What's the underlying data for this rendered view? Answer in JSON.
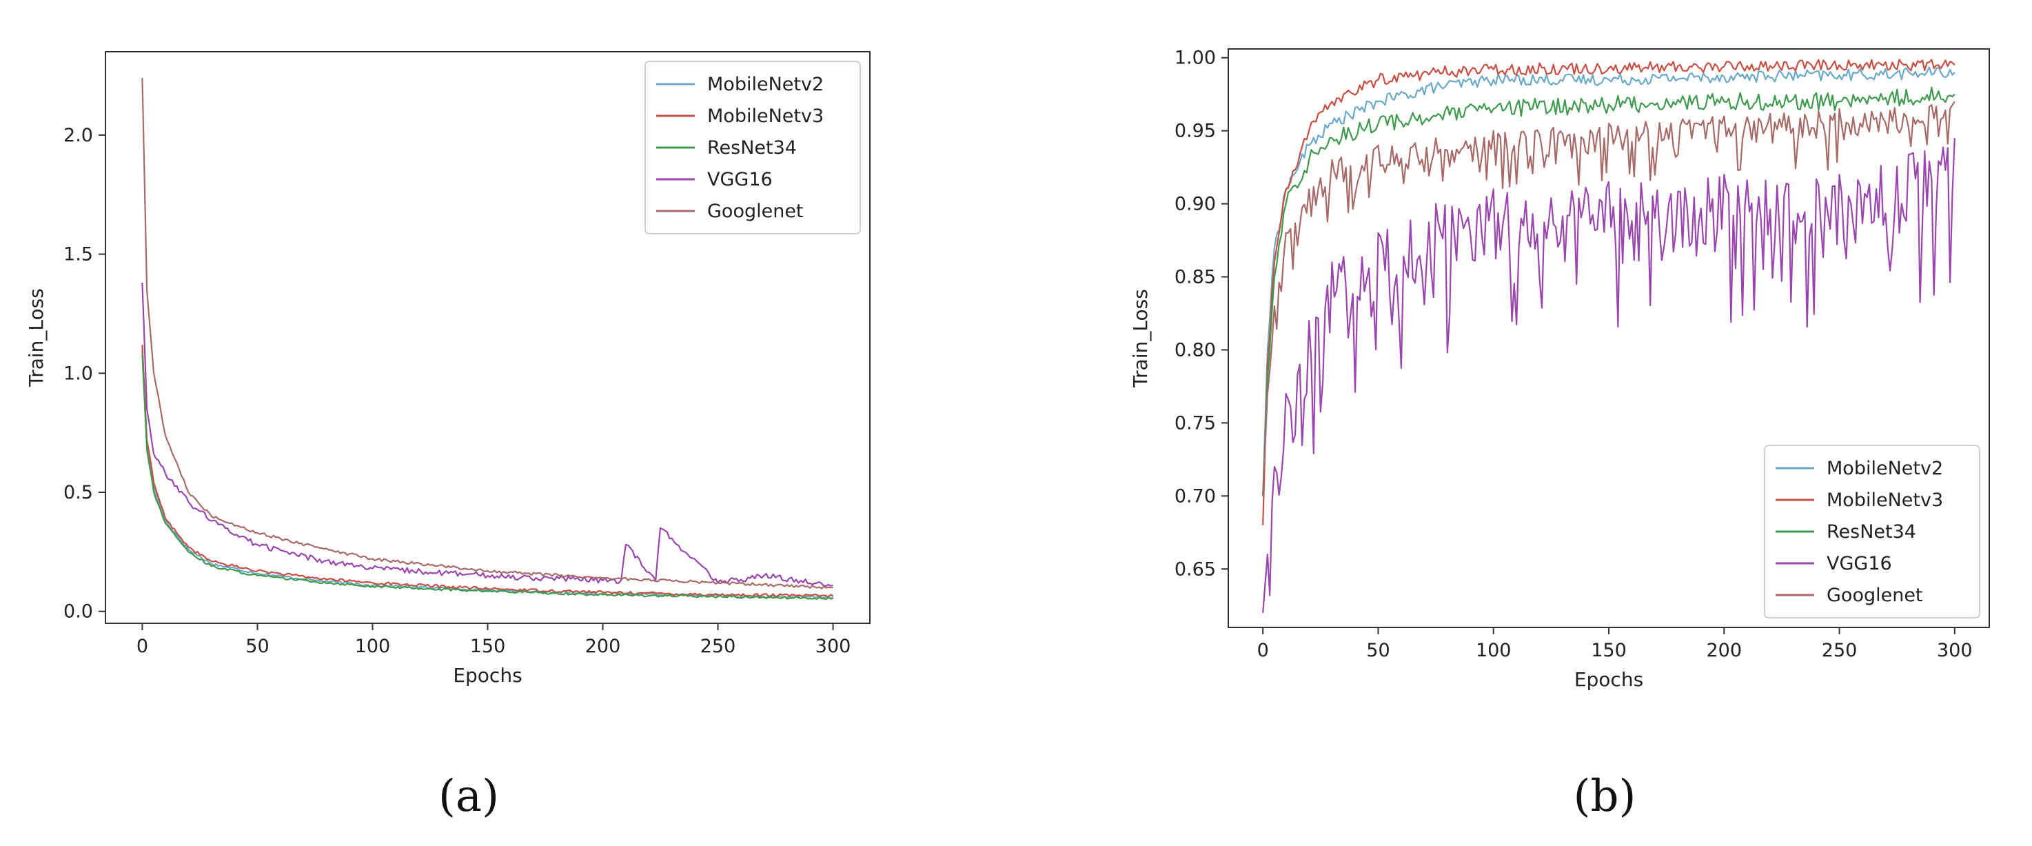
{
  "captions": [
    "(a)",
    "(b)"
  ],
  "colors": {
    "MobileNetv2": "#6aa9c9",
    "MobileNetv3": "#c94f43",
    "ResNet34": "#3e9a4c",
    "VGG16": "#9a45b0",
    "Googlenet": "#a86a66"
  },
  "chart_data": [
    {
      "type": "line",
      "panel": "(a)",
      "xlabel": "Epochs",
      "ylabel": "Train_Loss",
      "xlim": [
        -16,
        316
      ],
      "ylim": [
        -0.05,
        2.35
      ],
      "xticks": [
        0,
        50,
        100,
        150,
        200,
        250,
        300
      ],
      "yticks": [
        0.0,
        0.5,
        1.0,
        1.5,
        2.0
      ],
      "ytick_labels": [
        "0.0",
        "0.5",
        "1.0",
        "1.5",
        "2.0"
      ],
      "legend_position": "top-right",
      "grid": false,
      "series": [
        {
          "name": "MobileNetv2",
          "x": [
            0,
            2,
            5,
            10,
            20,
            30,
            50,
            75,
            100,
            150,
            200,
            250,
            300
          ],
          "y": [
            1.1,
            0.7,
            0.52,
            0.38,
            0.26,
            0.2,
            0.16,
            0.13,
            0.11,
            0.09,
            0.075,
            0.065,
            0.06
          ]
        },
        {
          "name": "MobileNetv3",
          "x": [
            0,
            2,
            5,
            10,
            20,
            30,
            50,
            75,
            100,
            150,
            200,
            250,
            300
          ],
          "y": [
            1.12,
            0.72,
            0.54,
            0.39,
            0.27,
            0.21,
            0.17,
            0.14,
            0.12,
            0.095,
            0.08,
            0.07,
            0.065
          ]
        },
        {
          "name": "ResNet34",
          "x": [
            0,
            2,
            5,
            10,
            20,
            30,
            50,
            75,
            100,
            150,
            200,
            250,
            300
          ],
          "y": [
            1.08,
            0.68,
            0.5,
            0.37,
            0.25,
            0.19,
            0.15,
            0.125,
            0.105,
            0.085,
            0.07,
            0.062,
            0.055
          ]
        },
        {
          "name": "VGG16",
          "x": [
            0,
            2,
            5,
            10,
            20,
            30,
            50,
            75,
            100,
            150,
            200,
            208,
            210,
            223,
            225,
            250,
            270,
            300
          ],
          "y": [
            1.38,
            0.85,
            0.66,
            0.58,
            0.46,
            0.38,
            0.28,
            0.22,
            0.18,
            0.15,
            0.13,
            0.13,
            0.28,
            0.13,
            0.35,
            0.12,
            0.15,
            0.11
          ]
        },
        {
          "name": "Googlenet",
          "x": [
            0,
            2,
            5,
            10,
            20,
            30,
            50,
            75,
            100,
            150,
            200,
            250,
            300
          ],
          "y": [
            2.24,
            1.35,
            1.0,
            0.74,
            0.5,
            0.4,
            0.33,
            0.27,
            0.22,
            0.17,
            0.14,
            0.12,
            0.1
          ]
        }
      ]
    },
    {
      "type": "line",
      "panel": "(b)",
      "xlabel": "Epochs",
      "ylabel": "Train_Loss",
      "xlim": [
        -15,
        315
      ],
      "ylim": [
        0.61,
        1.006
      ],
      "xticks": [
        0,
        50,
        100,
        150,
        200,
        250,
        300
      ],
      "yticks": [
        0.65,
        0.7,
        0.75,
        0.8,
        0.85,
        0.9,
        0.95,
        1.0
      ],
      "ytick_labels": [
        "0.65",
        "0.70",
        "0.75",
        "0.80",
        "0.85",
        "0.90",
        "0.95",
        "1.00"
      ],
      "legend_position": "bottom-right",
      "grid": false,
      "series": [
        {
          "name": "MobileNetv2",
          "x": [
            0,
            2,
            5,
            10,
            20,
            30,
            50,
            75,
            100,
            150,
            200,
            250,
            300
          ],
          "y": [
            0.7,
            0.8,
            0.87,
            0.91,
            0.94,
            0.955,
            0.97,
            0.98,
            0.985,
            0.985,
            0.987,
            0.988,
            0.99
          ]
        },
        {
          "name": "MobileNetv3",
          "x": [
            0,
            2,
            5,
            10,
            20,
            30,
            50,
            75,
            100,
            150,
            200,
            250,
            300
          ],
          "y": [
            0.68,
            0.79,
            0.86,
            0.91,
            0.95,
            0.97,
            0.985,
            0.99,
            0.992,
            0.993,
            0.994,
            0.995,
            0.995
          ]
        },
        {
          "name": "ResNet34",
          "x": [
            0,
            2,
            5,
            10,
            20,
            30,
            50,
            75,
            100,
            150,
            200,
            250,
            300
          ],
          "y": [
            0.7,
            0.78,
            0.85,
            0.9,
            0.93,
            0.945,
            0.955,
            0.96,
            0.965,
            0.968,
            0.97,
            0.97,
            0.975
          ]
        },
        {
          "name": "VGG16",
          "x": [
            0,
            2,
            5,
            10,
            20,
            30,
            50,
            75,
            100,
            150,
            200,
            250,
            300
          ],
          "y": [
            0.62,
            0.66,
            0.72,
            0.77,
            0.82,
            0.86,
            0.88,
            0.9,
            0.91,
            0.915,
            0.92,
            0.92,
            0.945
          ]
        },
        {
          "name": "Googlenet",
          "x": [
            0,
            2,
            5,
            10,
            20,
            30,
            50,
            75,
            100,
            150,
            200,
            250,
            300
          ],
          "y": [
            0.7,
            0.77,
            0.83,
            0.88,
            0.91,
            0.93,
            0.94,
            0.945,
            0.95,
            0.955,
            0.96,
            0.965,
            0.97
          ]
        }
      ]
    }
  ]
}
